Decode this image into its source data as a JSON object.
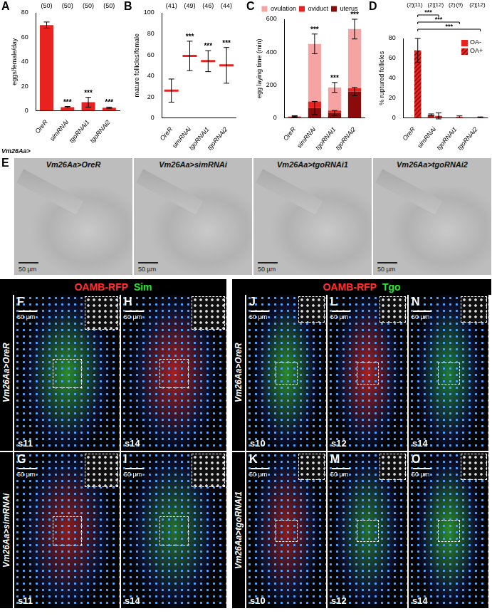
{
  "chart_data": [
    {
      "panel": "A",
      "type": "bar",
      "categories": [
        "OreR",
        "simRNAi",
        "tgoRNAi1",
        "tgoRNAi2"
      ],
      "group_label": "Vm26Aa>",
      "y_label": "eggs/female/day",
      "values": [
        70,
        3,
        7,
        2.5
      ],
      "errors": [
        2.5,
        0.5,
        4,
        0.5
      ],
      "n_labels": [
        "(50)",
        "(50)",
        "(50)",
        "(50)"
      ],
      "significance": [
        null,
        "***",
        "***",
        "***"
      ],
      "color": "#e8231f",
      "ylim": [
        0,
        80
      ],
      "yticks": [
        0,
        20,
        40,
        60,
        80
      ],
      "grid": false
    },
    {
      "panel": "B",
      "type": "dot",
      "categories": [
        "OreR",
        "simRNAi",
        "tgoRNAi1",
        "tgoRNAi2"
      ],
      "y_label": "mature follicles/female",
      "values": [
        26,
        59,
        54,
        50
      ],
      "errors": [
        11,
        14,
        10,
        17
      ],
      "n_labels": [
        "(41)",
        "(49)",
        "(46)",
        "(44)"
      ],
      "significance": [
        null,
        "***",
        "***",
        "***"
      ],
      "color": "#e8231f",
      "ylim": [
        0,
        100
      ],
      "yticks": [
        0,
        20,
        40,
        60,
        80,
        100
      ],
      "grid": false
    },
    {
      "panel": "C",
      "type": "bar",
      "stacked": true,
      "categories": [
        "OreR",
        "simRNAi",
        "tgoRNAi1",
        "tgoRNAi2"
      ],
      "y_label": "egg laying time (min)",
      "series": [
        {
          "name": "uterus",
          "color": "#8b0a0a",
          "values": [
            5,
            60,
            30,
            160
          ],
          "errors": [
            2,
            40,
            15,
            25
          ]
        },
        {
          "name": "oviduct",
          "color": "#e8231f",
          "values": [
            2,
            40,
            15,
            20
          ]
        },
        {
          "name": "ovulation",
          "color": "#f5a3a3",
          "values": [
            3,
            350,
            140,
            360
          ],
          "errors": [
            3,
            60,
            30,
            60
          ]
        }
      ],
      "significance": [
        null,
        "***",
        "***",
        "***"
      ],
      "legend": "top",
      "ylim": [
        0,
        600
      ],
      "yticks": [
        0,
        200,
        400,
        600
      ],
      "grid": false
    },
    {
      "panel": "D",
      "type": "bar",
      "categories": [
        "OreR",
        "simRNAi",
        "tgoRNAi1",
        "tgoRNAi2"
      ],
      "y_label": "% ruptured follicles",
      "series": [
        {
          "name": "OA-",
          "color": "#e8231f",
          "values": [
            0,
            3,
            0,
            0
          ],
          "errors": [
            0,
            1,
            0,
            0
          ],
          "n_labels": [
            "(2)",
            "(2)",
            "(2)",
            "(2)"
          ]
        },
        {
          "name": "OA+",
          "color": "#e8231f",
          "marker": "hatch",
          "values": [
            68,
            2,
            1,
            0.5
          ],
          "errors": [
            12,
            3,
            1,
            0.5
          ],
          "n_labels": [
            "(11)",
            "(12)",
            "(9)",
            "(12)"
          ]
        }
      ],
      "comparisons": [
        {
          "series": "OA+",
          "from": 0,
          "to": 1,
          "label": "***"
        },
        {
          "series": "OA+",
          "from": 0,
          "to": 2,
          "label": "***"
        },
        {
          "series": "OA+",
          "from": 0,
          "to": 3,
          "label": "***"
        }
      ],
      "legend": "top-right",
      "ylim": [
        0,
        80
      ],
      "yticks": [
        0,
        20,
        40,
        60,
        80
      ],
      "grid": false
    }
  ],
  "figure_panels": {
    "E": {
      "letter": "E",
      "images": [
        {
          "label": "Vm26Aa>OreR",
          "scale_bar": "50 µm"
        },
        {
          "label": "Vm26Aa>simRNAi",
          "scale_bar": "50 µm"
        },
        {
          "label": "Vm26Aa>tgoRNAi1",
          "scale_bar": "50 µm"
        },
        {
          "label": "Vm26Aa>tgoRNAi2",
          "scale_bar": "50 µm"
        }
      ]
    },
    "sim_group": {
      "header": [
        {
          "text": "OAMB-RFP",
          "color": "#ff3030"
        },
        {
          "text": "Sim",
          "color": "#30e030"
        }
      ],
      "rows": [
        {
          "label": "Vm26Aa>OreR",
          "images": [
            {
              "letter": "F",
              "stage": "s11",
              "scale_bar": "50 µm"
            },
            {
              "letter": "H",
              "stage": "s14",
              "scale_bar": "50 µm"
            }
          ]
        },
        {
          "label": "Vm26Aa>simRNAi",
          "images": [
            {
              "letter": "G",
              "stage": "s11",
              "scale_bar": "50 µm"
            },
            {
              "letter": "I",
              "stage": "s14",
              "scale_bar": "50 µm"
            }
          ]
        }
      ]
    },
    "tgo_group": {
      "header": [
        {
          "text": "OAMB-RFP",
          "color": "#ff3030"
        },
        {
          "text": "Tgo",
          "color": "#30e030"
        }
      ],
      "rows": [
        {
          "label": "Vm26Aa>OreR",
          "images": [
            {
              "letter": "J",
              "stage": "s10",
              "scale_bar": "50 µm"
            },
            {
              "letter": "L",
              "stage": "s12",
              "scale_bar": "50 µm"
            },
            {
              "letter": "N",
              "stage": "s14",
              "scale_bar": "50 µm"
            }
          ]
        },
        {
          "label": "Vm26Aa>tgoRNAi1",
          "images": [
            {
              "letter": "K",
              "stage": "s10",
              "scale_bar": "50 µm"
            },
            {
              "letter": "M",
              "stage": "s12",
              "scale_bar": "50 µm"
            },
            {
              "letter": "O",
              "stage": "s14",
              "scale_bar": "50 µm"
            }
          ]
        }
      ]
    }
  }
}
